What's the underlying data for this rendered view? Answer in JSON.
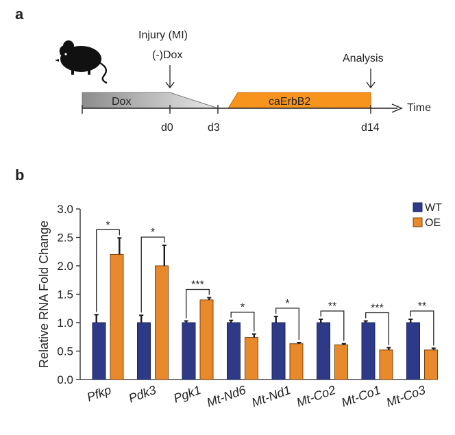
{
  "panel_a": {
    "label": "a",
    "injury_label": "Injury (MI)",
    "dox_minus_label": "(-)Dox",
    "analysis_label": "Analysis",
    "dox_bar_label": "Dox",
    "erbb2_bar_label": "caErbB2",
    "time_label": "Time",
    "ticks": [
      "d0",
      "d3",
      "d14"
    ],
    "colors": {
      "dox": "#8c8c8c",
      "erbb2": "#f7941d"
    }
  },
  "panel_b": {
    "label": "b"
  },
  "chart_data": {
    "type": "bar",
    "categories": [
      "Pfkp",
      "Pdk3",
      "Pgk1",
      "Mt-Nd6",
      "Mt-Nd1",
      "Mt-Co2",
      "Mt-Co1",
      "Mt-Co3"
    ],
    "series": [
      {
        "name": "WT",
        "color": "#2e3a87",
        "values": [
          1.0,
          1.0,
          1.0,
          1.0,
          1.0,
          1.0,
          1.0,
          1.0
        ],
        "errors": [
          0.14,
          0.13,
          0.03,
          0.04,
          0.11,
          0.06,
          0.03,
          0.06
        ]
      },
      {
        "name": "OE",
        "color": "#e8892b",
        "values": [
          2.2,
          2.0,
          1.4,
          0.74,
          0.63,
          0.61,
          0.52,
          0.52
        ],
        "errors": [
          0.29,
          0.36,
          0.04,
          0.06,
          0.02,
          0.02,
          0.04,
          0.03
        ]
      }
    ],
    "significance": [
      "*",
      "*",
      "***",
      "*",
      "*",
      "**",
      "***",
      "**"
    ],
    "ylabel": "Relative RNA Fold Change",
    "xlabel": "",
    "ylim": [
      0,
      3.0
    ],
    "yticks": [
      "0.0",
      "0.5",
      "1.0",
      "1.5",
      "2.0",
      "2.5",
      "3.0"
    ],
    "grid": false,
    "legend_position": "top-right"
  }
}
